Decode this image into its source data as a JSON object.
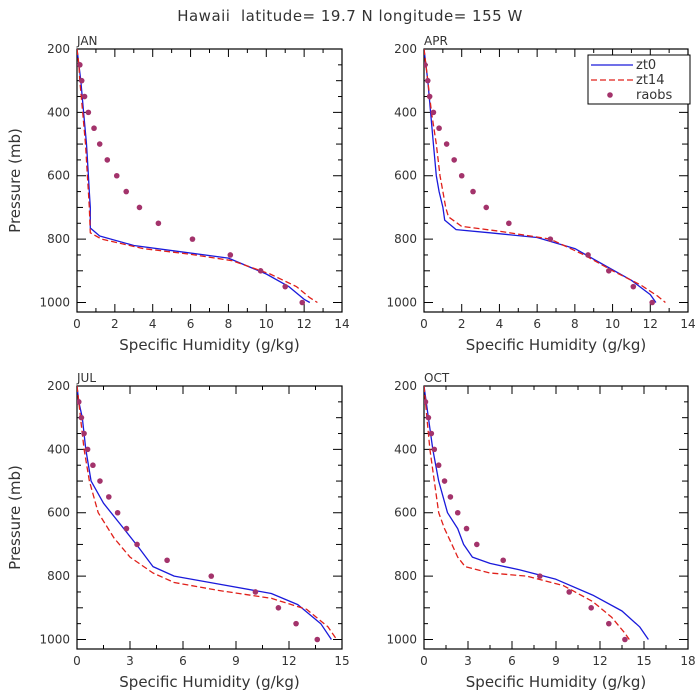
{
  "figure": {
    "title": "Hawaii  latitude= 19.7 N longitude= 155 W"
  },
  "legend": {
    "panel": 1,
    "entries": [
      {
        "label": "zt0",
        "color": "#1a1adb",
        "style": "solid"
      },
      {
        "label": "zt14",
        "color": "#e0201a",
        "style": "dashed"
      },
      {
        "label": "raobs",
        "color": "#a3336b",
        "style": "marker"
      }
    ]
  },
  "colors": {
    "zt0": "#1a1adb",
    "zt14": "#e0201a",
    "raobs": "#a3336b",
    "axis": "#000000",
    "text": "#333333"
  },
  "chart_data": [
    {
      "type": "line",
      "panel_label": "JAN",
      "xlabel": "Specific Humidity (g/kg)",
      "ylabel": "Pressure (mb)",
      "xlim": [
        0,
        14
      ],
      "ylim": [
        1030,
        200
      ],
      "y_inverted": true,
      "xticks": [
        0,
        2,
        4,
        6,
        8,
        10,
        12,
        14
      ],
      "yticks": [
        200,
        400,
        600,
        800,
        1000
      ],
      "series": [
        {
          "name": "zt0",
          "style": "solid",
          "x": [
            0.0,
            0.1,
            0.2,
            0.35,
            0.5,
            0.6,
            0.65,
            0.7,
            0.7,
            1.2,
            3.0,
            5.5,
            8.0,
            10.0,
            11.2,
            12.0,
            12.3
          ],
          "y": [
            200,
            250,
            300,
            400,
            500,
            600,
            650,
            700,
            765,
            790,
            820,
            840,
            860,
            910,
            950,
            990,
            1000
          ]
        },
        {
          "name": "zt14",
          "style": "dashed",
          "x": [
            0.0,
            0.1,
            0.15,
            0.3,
            0.45,
            0.55,
            0.6,
            0.65,
            0.7,
            1.3,
            3.5,
            6.0,
            8.2,
            10.2,
            11.6,
            12.3,
            12.7
          ],
          "y": [
            200,
            250,
            300,
            400,
            500,
            600,
            650,
            700,
            780,
            800,
            830,
            848,
            868,
            910,
            950,
            985,
            1000
          ]
        },
        {
          "name": "raobs",
          "style": "marker",
          "x": [
            0.15,
            0.25,
            0.4,
            0.6,
            0.9,
            1.2,
            1.6,
            2.1,
            2.6,
            3.3,
            4.3,
            6.1,
            8.1,
            9.7,
            11.0,
            11.9
          ],
          "y": [
            250,
            300,
            350,
            400,
            450,
            500,
            550,
            600,
            650,
            700,
            750,
            800,
            850,
            900,
            950,
            1000
          ]
        }
      ]
    },
    {
      "type": "line",
      "panel_label": "APR",
      "xlabel": "Specific Humidity (g/kg)",
      "ylabel": "",
      "xlim": [
        0,
        14
      ],
      "ylim": [
        1030,
        200
      ],
      "y_inverted": true,
      "xticks": [
        0,
        2,
        4,
        6,
        8,
        10,
        12,
        14
      ],
      "yticks": [
        200,
        400,
        600,
        800,
        1000
      ],
      "series": [
        {
          "name": "zt0",
          "style": "solid",
          "x": [
            0.0,
            0.1,
            0.2,
            0.35,
            0.5,
            0.65,
            0.8,
            1.0,
            1.1,
            1.7,
            3.5,
            6.0,
            8.0,
            9.5,
            11.0,
            12.0,
            12.3
          ],
          "y": [
            200,
            250,
            300,
            400,
            500,
            600,
            650,
            700,
            740,
            770,
            780,
            795,
            830,
            880,
            930,
            975,
            1000
          ]
        },
        {
          "name": "zt14",
          "style": "dashed",
          "x": [
            0.0,
            0.1,
            0.2,
            0.4,
            0.65,
            0.85,
            1.0,
            1.15,
            1.3,
            2.0,
            4.0,
            6.7,
            8.5,
            10.0,
            11.5,
            12.4,
            12.8
          ],
          "y": [
            200,
            250,
            300,
            400,
            500,
            600,
            650,
            700,
            730,
            760,
            775,
            800,
            850,
            900,
            945,
            980,
            1000
          ]
        },
        {
          "name": "raobs",
          "style": "marker",
          "x": [
            0.05,
            0.2,
            0.3,
            0.5,
            0.8,
            1.2,
            1.6,
            2.0,
            2.6,
            3.3,
            4.5,
            6.7,
            8.7,
            9.8,
            11.1,
            12.1
          ],
          "y": [
            250,
            300,
            350,
            400,
            450,
            500,
            550,
            600,
            650,
            700,
            750,
            800,
            850,
            900,
            950,
            1000
          ]
        }
      ]
    },
    {
      "type": "line",
      "panel_label": "JUL",
      "xlabel": "Specific Humidity (g/kg)",
      "ylabel": "Pressure (mb)",
      "xlim": [
        0,
        15
      ],
      "ylim": [
        1030,
        200
      ],
      "y_inverted": true,
      "xticks": [
        0,
        3,
        6,
        9,
        12,
        15
      ],
      "yticks": [
        200,
        400,
        600,
        800,
        1000
      ],
      "series": [
        {
          "name": "zt0",
          "style": "solid",
          "x": [
            0.0,
            0.1,
            0.3,
            0.5,
            0.8,
            1.5,
            2.5,
            3.5,
            4.3,
            5.5,
            8.0,
            11.0,
            12.5,
            13.8,
            14.4
          ],
          "y": [
            200,
            250,
            300,
            400,
            500,
            570,
            640,
            710,
            770,
            800,
            825,
            855,
            890,
            950,
            1000
          ]
        },
        {
          "name": "zt14",
          "style": "dashed",
          "x": [
            0.0,
            0.1,
            0.2,
            0.4,
            0.7,
            1.2,
            2.1,
            3.0,
            4.3,
            5.5,
            8.0,
            11.0,
            13.0,
            14.2,
            14.7
          ],
          "y": [
            200,
            250,
            300,
            400,
            500,
            600,
            680,
            740,
            790,
            820,
            845,
            870,
            905,
            960,
            1000
          ]
        },
        {
          "name": "raobs",
          "style": "marker",
          "x": [
            0.1,
            0.25,
            0.4,
            0.6,
            0.9,
            1.3,
            1.8,
            2.3,
            2.8,
            3.4,
            5.1,
            7.6,
            10.1,
            11.4,
            12.4,
            13.6
          ],
          "y": [
            250,
            300,
            350,
            400,
            450,
            500,
            550,
            600,
            650,
            700,
            750,
            800,
            850,
            900,
            950,
            1000
          ]
        }
      ]
    },
    {
      "type": "line",
      "panel_label": "OCT",
      "xlabel": "Specific Humidity (g/kg)",
      "ylabel": "",
      "xlim": [
        0,
        18
      ],
      "ylim": [
        1030,
        200
      ],
      "y_inverted": true,
      "xticks": [
        0,
        3,
        6,
        9,
        12,
        15,
        18
      ],
      "yticks": [
        200,
        400,
        600,
        800,
        1000
      ],
      "series": [
        {
          "name": "zt0",
          "style": "solid",
          "x": [
            0.0,
            0.15,
            0.3,
            0.6,
            1.0,
            1.6,
            2.3,
            2.7,
            3.0,
            3.3,
            4.5,
            6.5,
            9.0,
            11.5,
            13.5,
            14.7,
            15.3
          ],
          "y": [
            200,
            250,
            300,
            400,
            500,
            600,
            650,
            700,
            720,
            740,
            760,
            780,
            810,
            860,
            910,
            960,
            1000
          ]
        },
        {
          "name": "zt14",
          "style": "dashed",
          "x": [
            0.0,
            0.1,
            0.2,
            0.4,
            0.7,
            1.0,
            1.4,
            1.9,
            2.3,
            2.8,
            4.5,
            7.0,
            9.5,
            11.5,
            12.8,
            13.7,
            14.0
          ],
          "y": [
            200,
            250,
            300,
            400,
            500,
            600,
            650,
            700,
            740,
            770,
            790,
            800,
            830,
            880,
            930,
            980,
            1000
          ]
        },
        {
          "name": "raobs",
          "style": "marker",
          "x": [
            0.1,
            0.3,
            0.5,
            0.7,
            1.0,
            1.4,
            1.8,
            2.3,
            2.9,
            3.6,
            5.4,
            7.9,
            9.9,
            11.4,
            12.6,
            13.7
          ],
          "y": [
            250,
            300,
            350,
            400,
            450,
            500,
            550,
            600,
            650,
            700,
            750,
            800,
            850,
            900,
            950,
            1000
          ]
        }
      ]
    }
  ]
}
